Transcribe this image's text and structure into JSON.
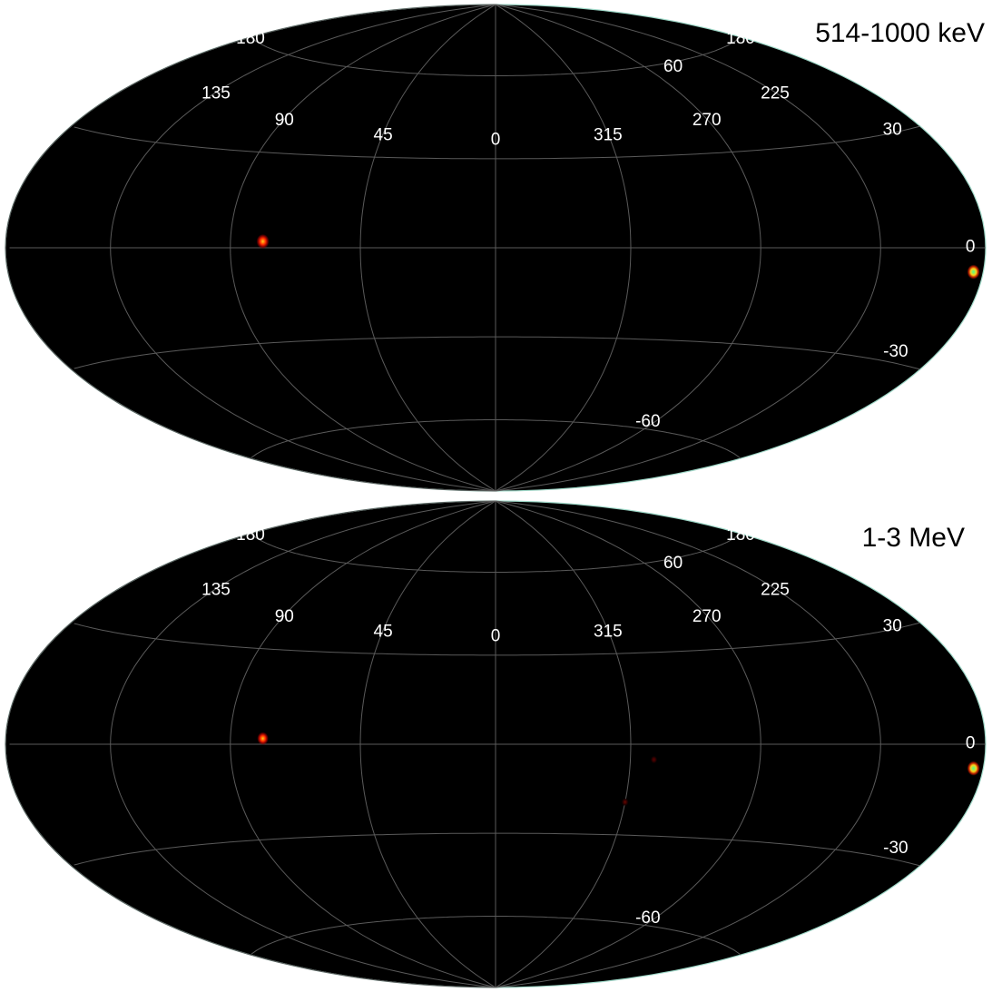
{
  "projection": "hammer-aitoff",
  "coordinates": "galactic",
  "colors": {
    "sky_background": "#000000",
    "grid": "#5a5a5a",
    "sky_outline": "#9fd8c8",
    "label": "#ffffff",
    "title": "#000000",
    "page": "#ffffff"
  },
  "grid": {
    "longitude_lines": [
      180,
      135,
      90,
      45,
      0,
      315,
      270,
      225
    ],
    "latitude_lines": [
      -60,
      -30,
      0,
      30,
      60
    ]
  },
  "panels": [
    {
      "title": "514-1000 keV",
      "longitude_labels": [
        {
          "text": "180",
          "lon": 180,
          "lat": 60
        },
        {
          "text": "135",
          "lon": 135,
          "lat": 46
        },
        {
          "text": "90",
          "lon": 90,
          "lat": 41
        },
        {
          "text": "45",
          "lon": 45,
          "lat": 38
        },
        {
          "text": "0",
          "lon": 0,
          "lat": 37
        },
        {
          "text": "315",
          "lon": 315,
          "lat": 38
        },
        {
          "text": "270",
          "lon": 270,
          "lat": 41
        },
        {
          "text": "225",
          "lon": 225,
          "lat": 46
        },
        {
          "text": "180",
          "lon": 180.01,
          "lat": 60
        }
      ],
      "latitude_labels": [
        {
          "text": "60",
          "lon": 253,
          "lat": 59
        },
        {
          "text": "30",
          "lon": 194,
          "lat": 31
        },
        {
          "text": "0",
          "lon": 187,
          "lat": 0.5
        },
        {
          "text": "-30",
          "lon": 200,
          "lat": -27
        },
        {
          "text": "-60",
          "lon": 275,
          "lat": -57
        }
      ],
      "sources": [
        {
          "lon": 78.5,
          "lat": 2.0,
          "peak": 1.0,
          "colors": [
            "#ffd21a",
            "#ff2a00",
            "#8a0000"
          ]
        },
        {
          "lon": 184.5,
          "lat": -5.8,
          "peak": 1.0,
          "colors": [
            "#49ff8c",
            "#ffd21a",
            "#c81e00"
          ]
        }
      ]
    },
    {
      "title": "1-3 MeV",
      "longitude_labels": [
        {
          "text": "180",
          "lon": 180,
          "lat": 60
        },
        {
          "text": "135",
          "lon": 135,
          "lat": 46
        },
        {
          "text": "90",
          "lon": 90,
          "lat": 41
        },
        {
          "text": "45",
          "lon": 45,
          "lat": 38
        },
        {
          "text": "0",
          "lon": 0,
          "lat": 37
        },
        {
          "text": "315",
          "lon": 315,
          "lat": 38
        },
        {
          "text": "270",
          "lon": 270,
          "lat": 41
        },
        {
          "text": "225",
          "lon": 225,
          "lat": 46
        },
        {
          "text": "180",
          "lon": 180.01,
          "lat": 60
        }
      ],
      "latitude_labels": [
        {
          "text": "60",
          "lon": 253,
          "lat": 59
        },
        {
          "text": "30",
          "lon": 194,
          "lat": 31
        },
        {
          "text": "0",
          "lon": 187,
          "lat": 0.5
        },
        {
          "text": "-30",
          "lon": 200,
          "lat": -27
        },
        {
          "text": "-60",
          "lon": 275,
          "lat": -57
        }
      ],
      "sources": [
        {
          "lon": 78.5,
          "lat": 1.8,
          "peak": 0.8,
          "colors": [
            "#ffd21a",
            "#ff2a00",
            "#8a0000"
          ]
        },
        {
          "lon": 184.5,
          "lat": -5.8,
          "peak": 1.0,
          "colors": [
            "#49ff8c",
            "#ffd21a",
            "#c81e00"
          ]
        },
        {
          "lon": 307,
          "lat": -5,
          "peak": 0.15,
          "colors": [
            "#5a0000",
            "#3a0000",
            "#1a0000"
          ]
        },
        {
          "lon": 315,
          "lat": -19,
          "peak": 0.2,
          "colors": [
            "#6a0a00",
            "#3a0000",
            "#1a0000"
          ]
        }
      ]
    }
  ]
}
